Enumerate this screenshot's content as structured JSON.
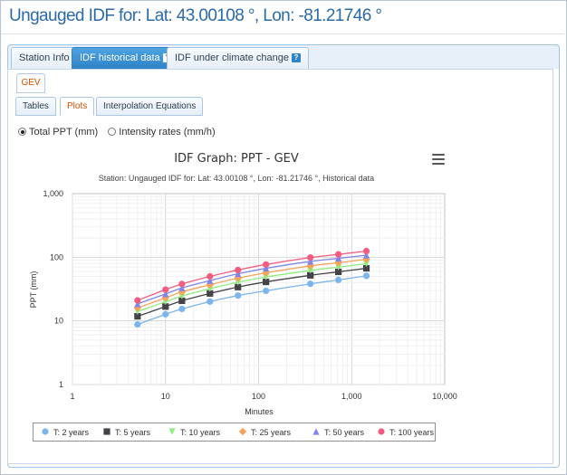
{
  "title": "Ungauged IDF for: Lat: 43.00108 °, Lon: -81.21746 °",
  "outer_tabs": [
    {
      "label": "Station Info",
      "help": false,
      "active": false
    },
    {
      "label": "IDF historical data",
      "help": true,
      "active": true
    },
    {
      "label": "IDF under climate change",
      "help": true,
      "active": false
    }
  ],
  "help_glyph": "?",
  "distribution_tab": "GEV",
  "inner_tabs": [
    {
      "label": "Tables",
      "active": false
    },
    {
      "label": "Plots",
      "active": true
    },
    {
      "label": "Interpolation Equations",
      "active": false
    }
  ],
  "radio_options": [
    {
      "label": "Total PPT (mm)",
      "checked": true
    },
    {
      "label": "Intensity rates (mm/h)",
      "checked": false
    }
  ],
  "chart_data": {
    "type": "line",
    "title": "IDF Graph: PPT - GEV",
    "subtitle": "Station: Ungauged IDF for: Lat: 43.00108 °, Lon: -81.21746 °, Historical data",
    "xlabel": "Minutes",
    "ylabel": "PPT (mm)",
    "x_scale": "log",
    "y_scale": "log",
    "xlim": [
      1,
      10000
    ],
    "ylim": [
      1,
      1000
    ],
    "x_tick_labels": [
      "1",
      "10",
      "100",
      "1,000",
      "10,000"
    ],
    "y_tick_labels": [
      "1",
      "10",
      "100",
      "1,000"
    ],
    "grid": true,
    "legend_position": "bottom",
    "x": [
      5,
      10,
      15,
      30,
      60,
      120,
      360,
      720,
      1440
    ],
    "series": [
      {
        "name": "T: 2 years",
        "color": "#7cb5ec",
        "marker": "circle",
        "values": [
          8.8,
          12.7,
          15.4,
          20.1,
          25.0,
          29.7,
          38.2,
          44.0,
          51.0
        ]
      },
      {
        "name": "T: 5 years",
        "color": "#434348",
        "marker": "square",
        "values": [
          11.8,
          16.8,
          20.7,
          27.0,
          34.0,
          41.0,
          52.0,
          59.0,
          67.0
        ]
      },
      {
        "name": "T: 10 years",
        "color": "#90ed7d",
        "marker": "triangle-down",
        "values": [
          14.0,
          20.0,
          24.5,
          32.0,
          40.5,
          49.0,
          62.0,
          70.0,
          79.0
        ]
      },
      {
        "name": "T: 25 years",
        "color": "#f7a35c",
        "marker": "diamond",
        "values": [
          16.0,
          23.0,
          28.5,
          37.0,
          47.0,
          57.0,
          73.0,
          82.0,
          93.0
        ]
      },
      {
        "name": "T: 50 years",
        "color": "#8085e9",
        "marker": "triangle",
        "values": [
          18.5,
          26.5,
          33.0,
          43.0,
          55.0,
          67.0,
          86.0,
          96.0,
          108.0
        ]
      },
      {
        "name": "T: 100 years",
        "color": "#f15c80",
        "marker": "circle",
        "values": [
          21.0,
          31.0,
          38.0,
          50.0,
          63.0,
          77.0,
          99.0,
          111.0,
          125.0
        ]
      }
    ]
  }
}
